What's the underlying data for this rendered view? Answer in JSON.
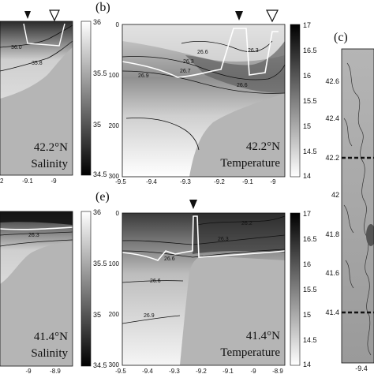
{
  "panel_labels": {
    "b": "(b)",
    "c": "(c)",
    "e": "(e)"
  },
  "chart_data": [
    {
      "type": "heatmap",
      "panel": "a",
      "latitude_label": "42.2°N",
      "variable_label": "Salinity",
      "x_ticks": [
        "-9.1",
        "-9"
      ],
      "y_ticks": [],
      "colorbar_ticks": [
        "36",
        "35.5",
        "35",
        "34.5"
      ],
      "colorbar_range": [
        34.5,
        36
      ],
      "contour_labels": [
        "36.0",
        "35.8"
      ]
    },
    {
      "type": "heatmap",
      "panel": "b",
      "latitude_label": "42.2°N",
      "variable_label": "Temperature",
      "xlim": [
        -9.5,
        -8.9
      ],
      "ylim": [
        300,
        0
      ],
      "x_ticks": [
        "-9.5",
        "-9.4",
        "-9.3",
        "-9.2",
        "-9.1",
        "-9"
      ],
      "y_ticks": [
        "0",
        "100",
        "200",
        "300"
      ],
      "colorbar_ticks": [
        "17",
        "16.5",
        "16",
        "15.5",
        "15",
        "14.5",
        "14"
      ],
      "colorbar_range": [
        14,
        17
      ],
      "contour_labels": [
        "26.3",
        "26.6",
        "26.7",
        "26.6",
        "26.9",
        "26.3"
      ]
    },
    {
      "type": "heatmap",
      "panel": "d",
      "latitude_label": "41.4°N",
      "variable_label": "Salinity",
      "x_ticks": [
        "-9",
        "-8.9"
      ],
      "y_ticks": [],
      "colorbar_ticks": [
        "36",
        "35.5",
        "35",
        "34.5"
      ],
      "colorbar_range": [
        34.5,
        36
      ],
      "contour_labels": [
        "26.3"
      ]
    },
    {
      "type": "heatmap",
      "panel": "e",
      "latitude_label": "41.4°N",
      "variable_label": "Temperature",
      "xlim": [
        -9.5,
        -8.9
      ],
      "ylim": [
        300,
        0
      ],
      "x_ticks": [
        "-9.5",
        "-9.4",
        "-9.3",
        "-9.2",
        "-9.1",
        "-9",
        "-8.9"
      ],
      "y_ticks": [
        "0",
        "100",
        "200",
        "300"
      ],
      "colorbar_ticks": [
        "17",
        "16.5",
        "16",
        "15.5",
        "15",
        "14.5",
        "14"
      ],
      "colorbar_range": [
        14,
        17
      ],
      "contour_labels": [
        "26.2",
        "26.3",
        "26.6",
        "26.6",
        "26.9"
      ]
    },
    {
      "type": "heatmap",
      "panel": "c",
      "y_ticks": [
        "42.6",
        "42.4",
        "42.2",
        "42",
        "41.8",
        "41.6",
        "41.4"
      ],
      "x_ticks": [
        "-9.4"
      ]
    }
  ]
}
